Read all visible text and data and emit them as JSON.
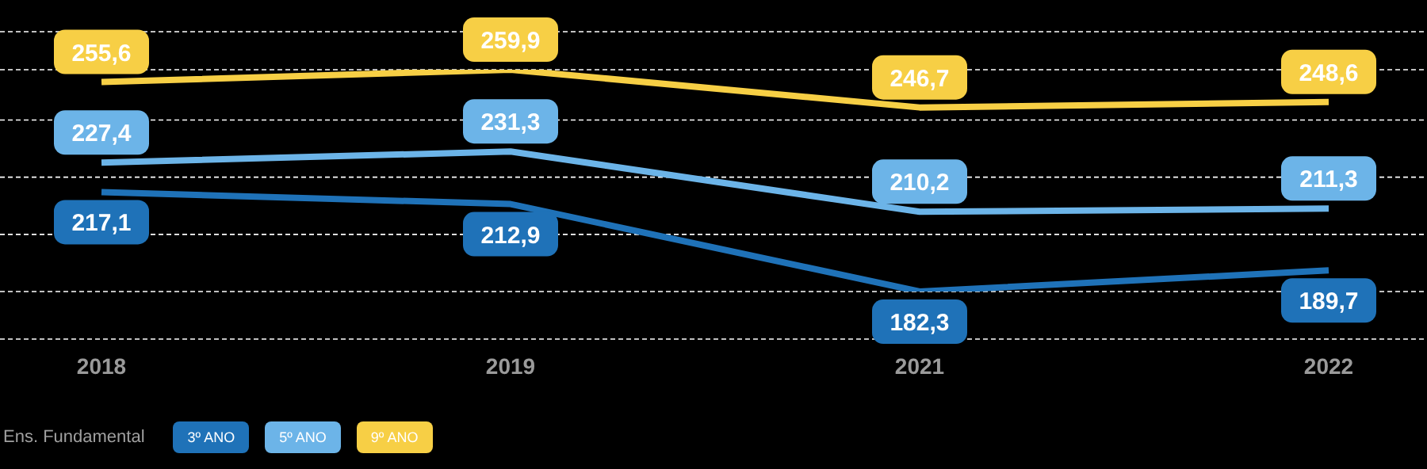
{
  "chart_data": {
    "type": "line",
    "categories": [
      "2018",
      "2019",
      "2021",
      "2022"
    ],
    "series": [
      {
        "name": "3º ANO",
        "color": "#1f72b8",
        "values": [
          217.1,
          212.9,
          182.3,
          189.7
        ],
        "value_labels": [
          "217,1",
          "212,9",
          "182,3",
          "189,7"
        ]
      },
      {
        "name": "5º ANO",
        "color": "#6cb4e8",
        "values": [
          227.4,
          231.3,
          210.2,
          211.3
        ],
        "value_labels": [
          "227,4",
          "231,3",
          "210,2",
          "211,3"
        ]
      },
      {
        "name": "9º ANO",
        "color": "#f7cf45",
        "values": [
          255.6,
          259.9,
          246.7,
          248.6
        ],
        "value_labels": [
          "255,6",
          "259,9",
          "246,7",
          "248,6"
        ]
      }
    ],
    "legend_title": "Ens. Fundamental",
    "legend": "bottom left",
    "line_style": "solid",
    "grid": "y",
    "tick_labels": "x"
  }
}
